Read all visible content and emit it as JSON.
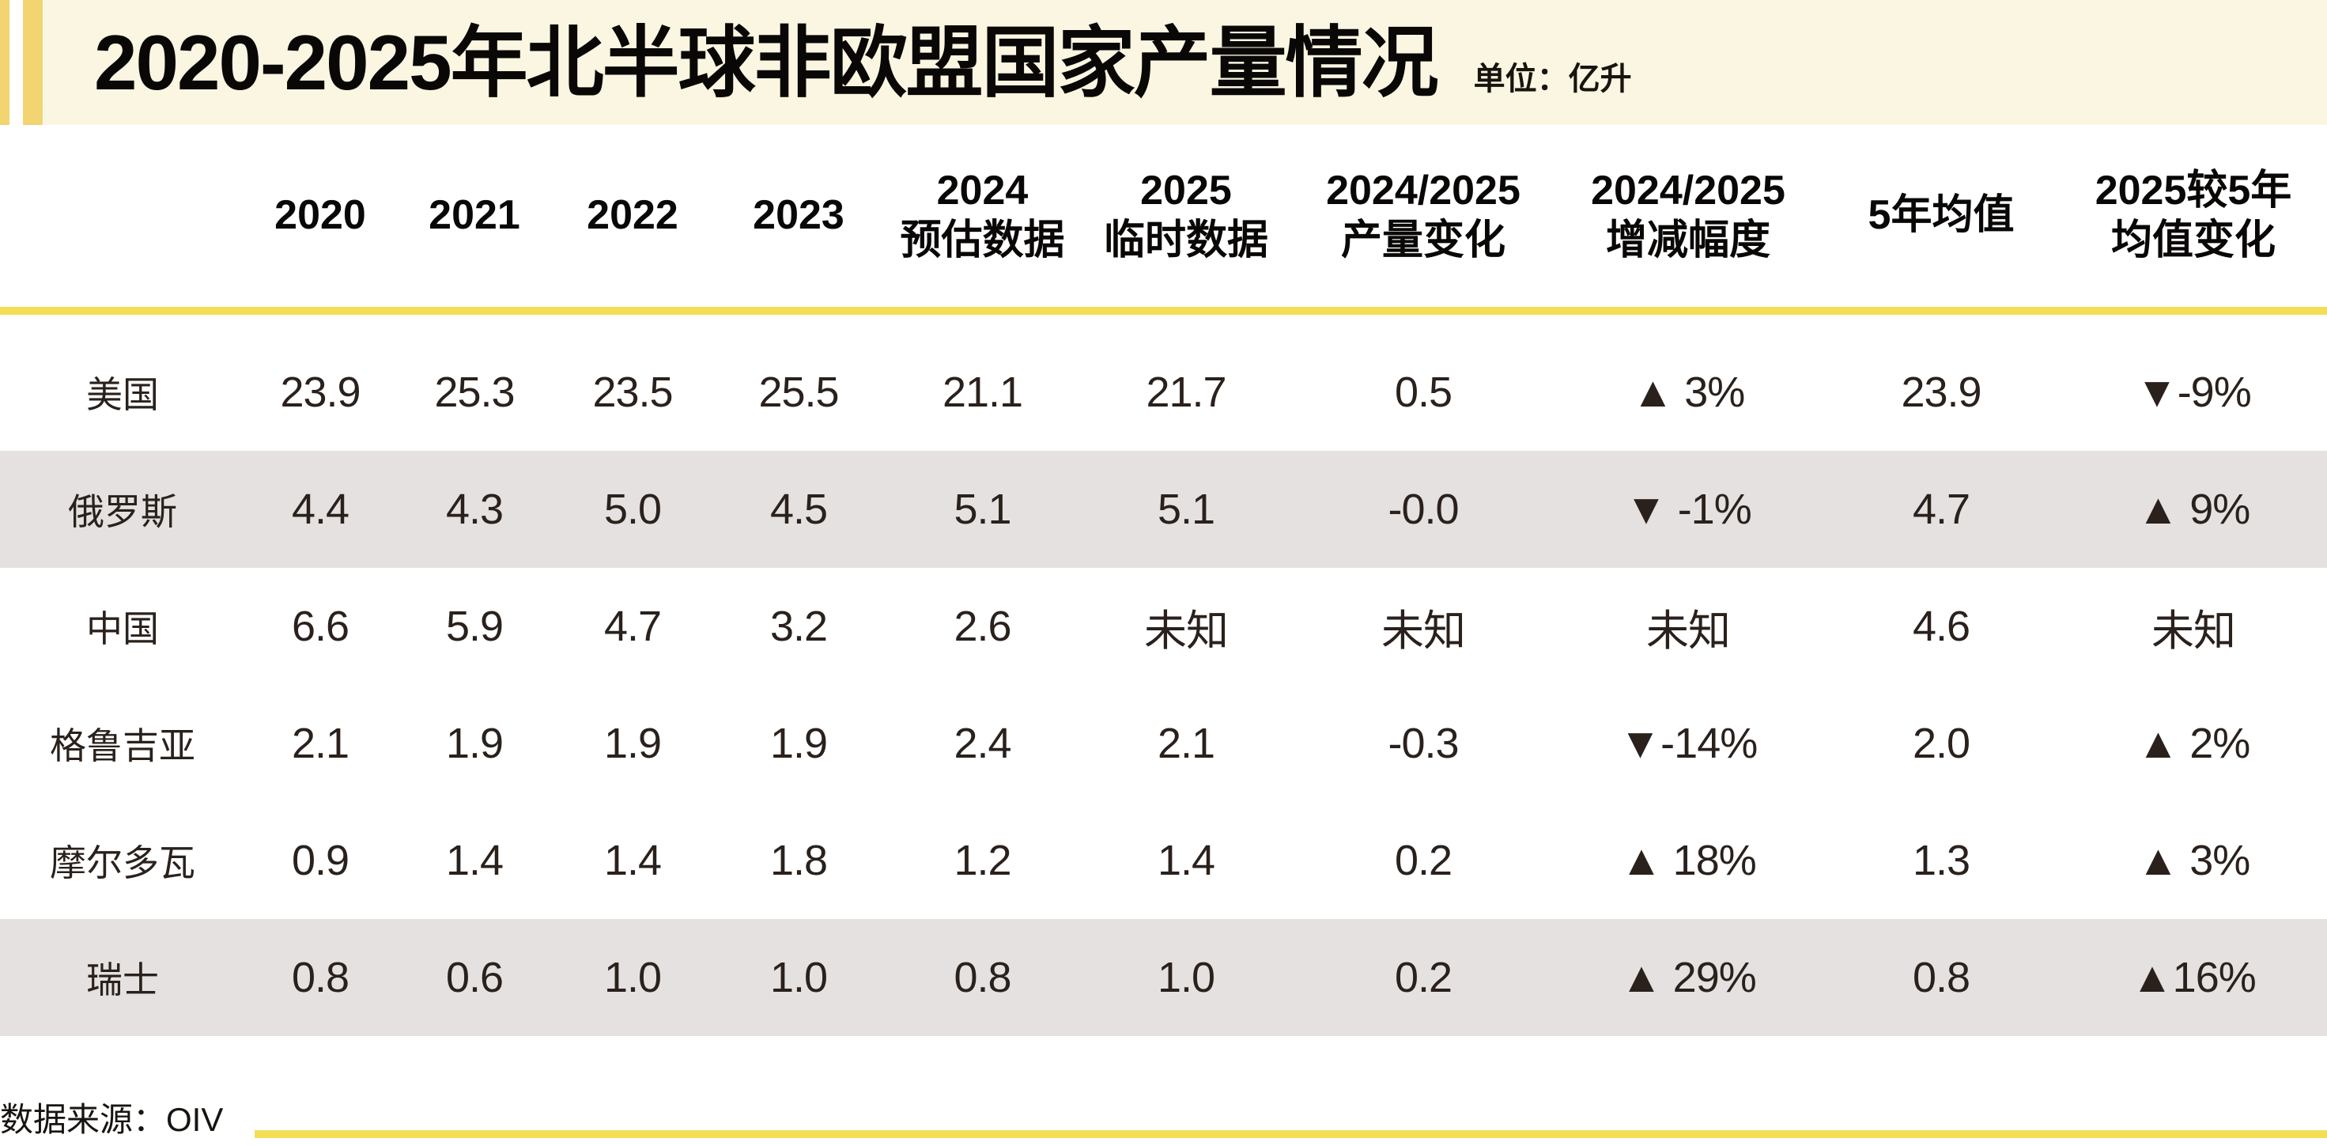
{
  "chart_data": {
    "type": "table",
    "title": "2020-2025年北半球非欧盟国家产量情况",
    "unit_label": "单位：亿升",
    "columns": [
      {
        "key": "country",
        "label": ""
      },
      {
        "key": "y2020",
        "label": "2020"
      },
      {
        "key": "y2021",
        "label": "2021"
      },
      {
        "key": "y2022",
        "label": "2022"
      },
      {
        "key": "y2023",
        "label": "2023"
      },
      {
        "key": "y2024_forecast",
        "label": "2024\n预估数据"
      },
      {
        "key": "y2025_provisional",
        "label": "2025\n临时数据"
      },
      {
        "key": "production_change_2024_2025",
        "label": "2024/2025\n产量变化"
      },
      {
        "key": "change_rate_2024_2025",
        "label": "2024/2025\n增减幅度"
      },
      {
        "key": "five_year_average",
        "label": "5年均值"
      },
      {
        "key": "change_vs_5yr_average",
        "label": "2025较5年\n均值变化"
      }
    ],
    "rows": [
      {
        "country": "美国",
        "shaded": false,
        "values": [
          "23.9",
          "25.3",
          "23.5",
          "25.5",
          "21.1",
          "21.7",
          "0.5",
          "▲ 3%",
          "23.9",
          "▼-9%"
        ]
      },
      {
        "country": "俄罗斯",
        "shaded": true,
        "values": [
          "4.4",
          "4.3",
          "5.0",
          "4.5",
          "5.1",
          "5.1",
          "-0.0",
          "▼ -1%",
          "4.7",
          "▲ 9%"
        ]
      },
      {
        "country": "中国",
        "shaded": false,
        "values": [
          "6.6",
          "5.9",
          "4.7",
          "3.2",
          "2.6",
          "未知",
          "未知",
          "未知",
          "4.6",
          "未知"
        ]
      },
      {
        "country": "格鲁吉亚",
        "shaded": false,
        "values": [
          "2.1",
          "1.9",
          "1.9",
          "1.9",
          "2.4",
          "2.1",
          "-0.3",
          "▼-14%",
          "2.0",
          "▲ 2%"
        ]
      },
      {
        "country": "摩尔多瓦",
        "shaded": false,
        "values": [
          "0.9",
          "1.4",
          "1.4",
          "1.8",
          "1.2",
          "1.4",
          "0.2",
          "▲ 18%",
          "1.3",
          "▲ 3%"
        ]
      },
      {
        "country": "瑞士",
        "shaded": true,
        "values": [
          "0.8",
          "0.6",
          "1.0",
          "1.0",
          "0.8",
          "1.0",
          "0.2",
          "▲ 29%",
          "0.8",
          "▲16%"
        ]
      }
    ]
  },
  "footer": {
    "source_label": "数据来源：OIV"
  },
  "colors": {
    "accent_yellow": "#F2D470",
    "rule_yellow": "#F5DE56",
    "title_band_cream": "#FAF6E1",
    "shaded_row_gray": "#E4E1E0",
    "ink_black": "#0A0807",
    "data_text": "#2A211C"
  }
}
